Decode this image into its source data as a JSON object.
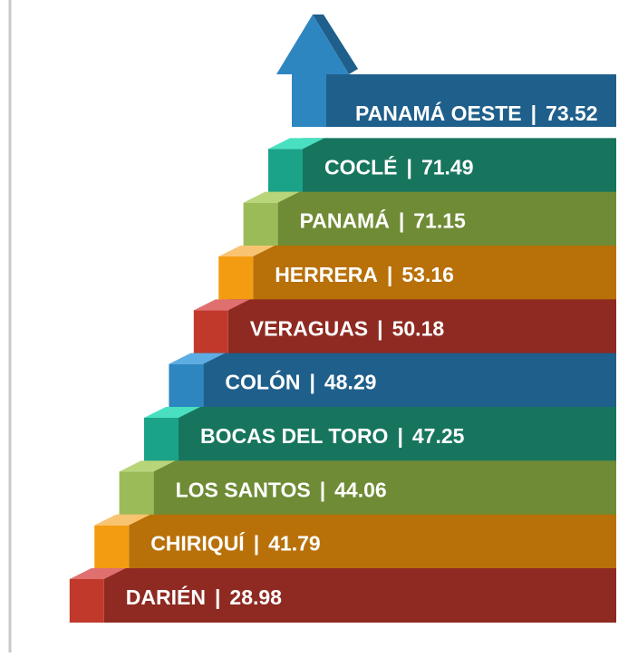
{
  "steps": [
    {
      "name": "PANAMÁ OESTE",
      "separator": "|",
      "value": "73.52",
      "color": "#2e86c1",
      "dark": "#1f5f8b",
      "light": "#5dade2"
    },
    {
      "name": "COCLÉ",
      "separator": "|",
      "value": "71.49",
      "color": "#1aa388",
      "dark": "#17755e",
      "light": "#48e0c0"
    },
    {
      "name": "PANAMÁ",
      "separator": "|",
      "value": "71.15",
      "color": "#9bbb59",
      "dark": "#6f8b35",
      "light": "#b8d57a"
    },
    {
      "name": "HERRERA",
      "separator": "|",
      "value": "53.16",
      "color": "#f39c12",
      "dark": "#b87008",
      "light": "#f8c471"
    },
    {
      "name": "VERAGUAS",
      "separator": "|",
      "value": "50.18",
      "color": "#c0392b",
      "dark": "#8e2a22",
      "light": "#e07070"
    },
    {
      "name": "COLÓN",
      "separator": "|",
      "value": "48.29",
      "color": "#2e86c1",
      "dark": "#1f5f8b",
      "light": "#5dade2"
    },
    {
      "name": "BOCAS DEL TORO",
      "separator": "|",
      "value": "47.25",
      "color": "#1aa388",
      "dark": "#17755e",
      "light": "#48e0c0"
    },
    {
      "name": "LOS SANTOS",
      "separator": "|",
      "value": "44.06",
      "color": "#9bbb59",
      "dark": "#6f8b35",
      "light": "#b8d57a"
    },
    {
      "name": "CHIRIQUÍ",
      "separator": "|",
      "value": "41.79",
      "color": "#f39c12",
      "dark": "#b87008",
      "light": "#f8c471"
    },
    {
      "name": "DARIÉN",
      "separator": "|",
      "value": "28.98",
      "color": "#c0392b",
      "dark": "#8e2a22",
      "light": "#e07070"
    }
  ]
}
